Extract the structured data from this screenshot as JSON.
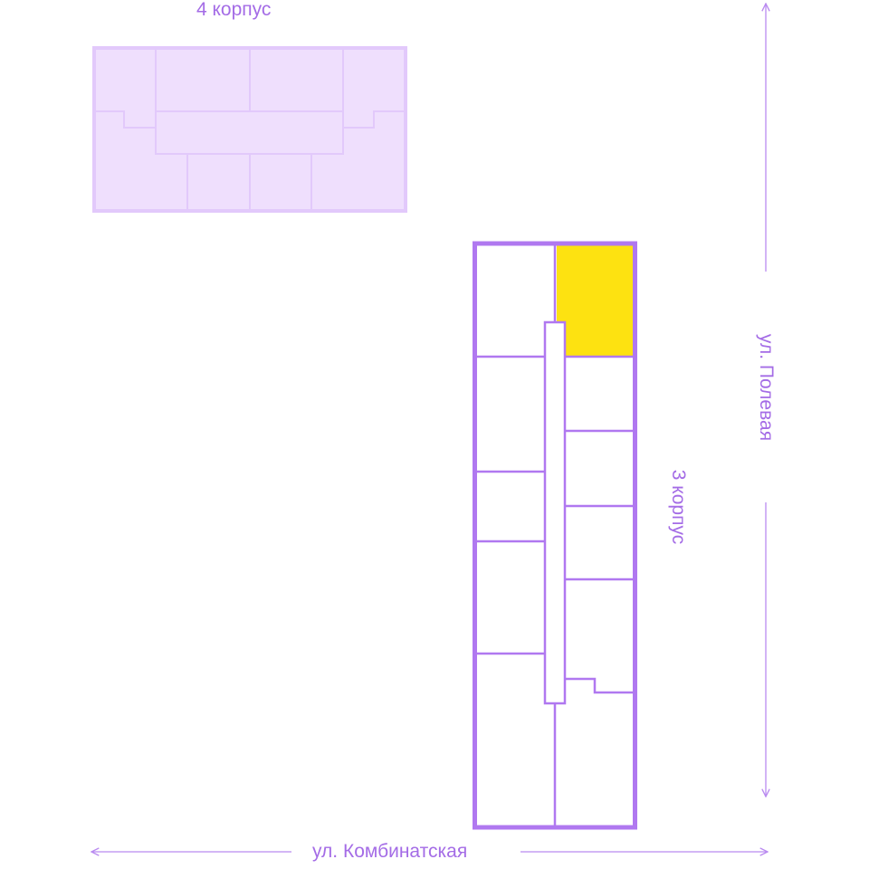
{
  "buildings": {
    "building_4": {
      "label": "4 корпус",
      "fill": "#efdffd",
      "stroke": "#e2c9fb"
    },
    "building_3": {
      "label": "3 корпус",
      "stroke": "#b078f0",
      "highlight": "#fde211"
    }
  },
  "streets": {
    "right": "ул. Полевая",
    "bottom": "ул. Комбинатская",
    "color": "#b98af0"
  }
}
